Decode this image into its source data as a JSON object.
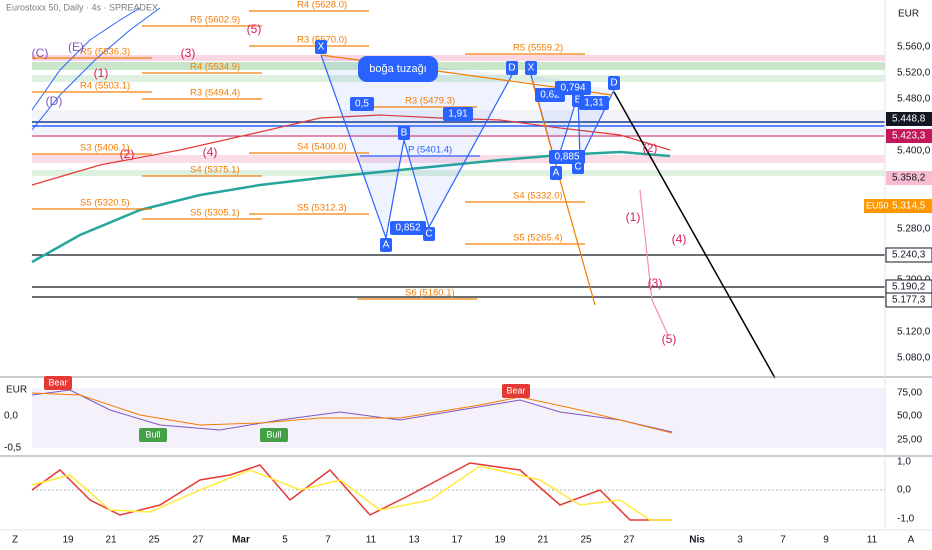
{
  "header": {
    "title": "Eurostoxx 50, Daily · 4s · SPREADEX",
    "currency": "EUR"
  },
  "price_axis": [
    "5.560,0",
    "5.520,0",
    "5.480,0",
    "5.400,0",
    "5.280,0",
    "5.200,0",
    "5.120,0",
    "5.080,0"
  ],
  "price_tags": [
    "5.448,8",
    "5.423,3",
    "5.358,2",
    "5.314,5",
    "5.240,3",
    "5.190,2",
    "5.177,3"
  ],
  "symbol_tag": "EU50",
  "pivots": [
    "R5 (5602.9)",
    "R4 (5628.0)",
    "R3 (5570.0)",
    "R5 (5536.3)",
    "R4 (5534.9)",
    "R4 (5503.1)",
    "R3 (5494.4)",
    "S3 (5406.1)",
    "S4 (5375.1)",
    "S5 (5320.5)",
    "S5 (5305.1)",
    "S4 (5400.0)",
    "S5 (5312.3)",
    "R3 (5479.3)",
    "R5 (5559.2)",
    "S4 (5332.0)",
    "S5 (5265.4)",
    "S6 (5180.1)",
    "P (5401.4)"
  ],
  "pattern_labels": [
    "X",
    "0,5",
    "B",
    "1,91",
    "0,852",
    "A",
    "C",
    "D",
    "X",
    "0,62",
    "0,794",
    "B",
    "1,31",
    "D",
    "0,885",
    "A",
    "C"
  ],
  "waves": [
    "(C)",
    "(E)",
    "(D)",
    "(1)",
    "(2)",
    "(3)",
    "(4)",
    "(5)",
    "(1)",
    "(2)",
    "(3)",
    "(4)",
    "(5)"
  ],
  "annotation": "boğa tuzağı",
  "rsi_panel": {
    "currency": "EUR",
    "axis": [
      "75,00",
      "50,00",
      "25,00"
    ],
    "left_axis": [
      "0,0",
      "-0,5"
    ],
    "signals": [
      "Bear",
      "Bull",
      "Bull",
      "Bear"
    ]
  },
  "macd_panel": {
    "axis": [
      "1,0",
      "0,0",
      "-1,0"
    ]
  },
  "time_axis": [
    "19",
    "21",
    "25",
    "27",
    "Mar",
    "5",
    "7",
    "11",
    "13",
    "17",
    "19",
    "21",
    "25",
    "27",
    "Nis",
    "3",
    "7",
    "9",
    "11"
  ],
  "corner": [
    "Z",
    "A"
  ]
}
